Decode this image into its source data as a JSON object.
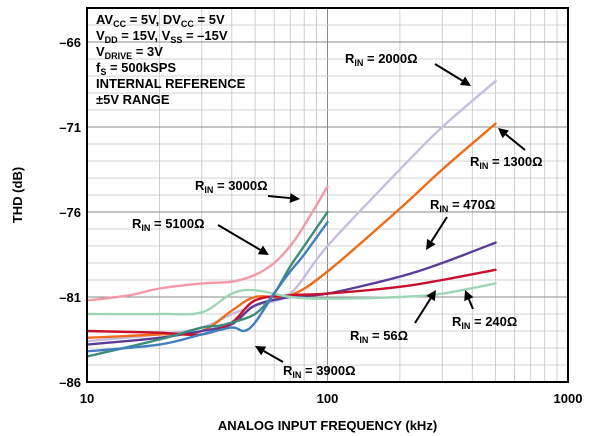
{
  "chart_data": {
    "type": "line",
    "xlabel": "ANALOG INPUT FREQUENCY (kHz)",
    "ylabel": "THD (dB)",
    "x_scale": "log",
    "xlim": [
      10,
      1000
    ],
    "ylim": [
      -86,
      -64
    ],
    "x_ticks": [
      "10",
      "100",
      "1000"
    ],
    "y_ticks": [
      "-66",
      "-71",
      "-76",
      "-81",
      "-86"
    ],
    "grid": true,
    "conditions": [
      {
        "base": "AV",
        "sub": "CC",
        "rest": " = 5V, DV",
        "sub2": "CC",
        "rest2": " = 5V"
      },
      {
        "base": "V",
        "sub": "DD",
        "rest": " = 15V, V",
        "sub2": "SS",
        "rest2": " = –15V"
      },
      {
        "base": "V",
        "sub": "DRIVE",
        "rest": " = 3V",
        "sub2": "",
        "rest2": ""
      },
      {
        "base": "f",
        "sub": "S",
        "rest": " = 500kSPS",
        "sub2": "",
        "rest2": ""
      },
      {
        "base": "INTERNAL REFERENCE",
        "sub": "",
        "rest": "",
        "sub2": "",
        "rest2": ""
      },
      {
        "base": "±5V RANGE",
        "sub": "",
        "rest": "",
        "sub2": "",
        "rest2": ""
      }
    ],
    "series": [
      {
        "color": "#c8bce0",
        "label_base": "R",
        "label_sub": "IN",
        "label_val": " = 2000Ω",
        "x": [
          10,
          20,
          30,
          40,
          50,
          70,
          100,
          200,
          300,
          500
        ],
        "y": [
          -83.6,
          -83.2,
          -82.8,
          -82.0,
          -81.5,
          -80.8,
          -78.0,
          -73.5,
          -71.0,
          -68.3
        ]
      },
      {
        "color": "#ef6c1a",
        "label_base": "R",
        "label_sub": "IN",
        "label_val": " = 1300Ω",
        "x": [
          10,
          20,
          30,
          40,
          50,
          70,
          100,
          200,
          300,
          500
        ],
        "y": [
          -83.4,
          -83.2,
          -83.0,
          -81.8,
          -81.0,
          -80.9,
          -79.5,
          -75.8,
          -73.5,
          -70.8
        ]
      },
      {
        "color": "#5a3d98",
        "label_base": "R",
        "label_sub": "IN",
        "label_val": " = 470Ω",
        "x": [
          10,
          20,
          30,
          40,
          50,
          70,
          100,
          200,
          300,
          500
        ],
        "y": [
          -83.8,
          -83.4,
          -83.0,
          -82.6,
          -81.5,
          -81.0,
          -80.8,
          -79.8,
          -79.0,
          -77.8
        ]
      },
      {
        "color": "#c8102e",
        "label_base": "R",
        "label_sub": "IN",
        "label_val": " = 240Ω",
        "x": [
          10,
          20,
          30,
          40,
          50,
          70,
          100,
          200,
          300,
          500
        ],
        "y": [
          -83.0,
          -83.1,
          -83.2,
          -82.5,
          -81.2,
          -80.9,
          -80.8,
          -80.4,
          -80.0,
          -79.4
        ]
      },
      {
        "color": "#9fd4b4",
        "label_base": "R",
        "label_sub": "IN",
        "label_val": " = 56Ω",
        "x": [
          10,
          20,
          30,
          40,
          50,
          70,
          100,
          200,
          300,
          500
        ],
        "y": [
          -82.0,
          -82.0,
          -81.9,
          -80.8,
          -80.6,
          -81.0,
          -81.1,
          -81.0,
          -80.8,
          -80.2
        ]
      },
      {
        "color": "#f29aa8",
        "label_base": "R",
        "label_sub": "IN",
        "label_val": " = 3000Ω",
        "x": [
          10,
          15,
          20,
          30,
          40,
          50,
          60,
          70,
          80,
          100
        ],
        "y": [
          -81.2,
          -80.9,
          -80.5,
          -80.2,
          -80.1,
          -79.7,
          -79.0,
          -78.0,
          -76.8,
          -74.5
        ]
      },
      {
        "color": "#3d8b7a",
        "label_base": "R",
        "label_sub": "IN",
        "label_val": " = 5100Ω",
        "x": [
          10,
          20,
          30,
          35,
          40,
          50,
          60,
          70,
          80,
          100
        ],
        "y": [
          -84.5,
          -83.5,
          -82.8,
          -82.7,
          -82.5,
          -82.0,
          -80.8,
          -79.2,
          -78.0,
          -76.0
        ]
      },
      {
        "color": "#3f7fbf",
        "label_base": "R",
        "label_sub": "IN",
        "label_val": " = 3900Ω",
        "x": [
          10,
          20,
          30,
          40,
          45,
          50,
          60,
          70,
          80,
          100
        ],
        "y": [
          -84.2,
          -83.8,
          -83.2,
          -82.8,
          -83.0,
          -82.5,
          -80.8,
          -79.5,
          -78.5,
          -76.6
        ]
      }
    ]
  }
}
